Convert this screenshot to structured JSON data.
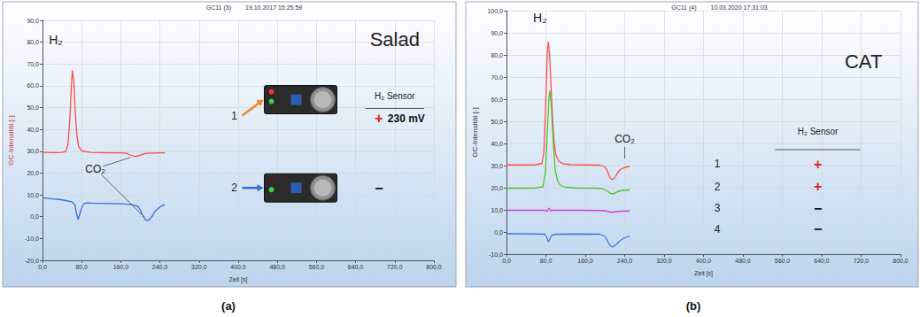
{
  "chart_data": [
    {
      "type": "line",
      "panel": "(a)",
      "header": [
        "GC11 (3)",
        "19.10.2017 15:25:59"
      ],
      "title": "Salad",
      "x_label": "Zeit [s]",
      "y_label": "GC-Intensität [-]",
      "grid": true,
      "xlim": [
        0,
        800
      ],
      "xticks": [
        {
          "value": 0,
          "label": "0,0"
        },
        {
          "value": 80,
          "label": "80,0"
        },
        {
          "value": 160,
          "label": "160,0"
        },
        {
          "value": 240,
          "label": "240,0"
        },
        {
          "value": 320,
          "label": "320,0"
        },
        {
          "value": 400,
          "label": "400,0"
        },
        {
          "value": 480,
          "label": "480,0"
        },
        {
          "value": 560,
          "label": "560,0"
        },
        {
          "value": 640,
          "label": "640,0"
        },
        {
          "value": 720,
          "label": "720,0"
        },
        {
          "value": 800,
          "label": "800,0"
        }
      ],
      "ylim": [
        -20,
        90
      ],
      "yticks": [
        {
          "value": -20,
          "label": "-20,0"
        },
        {
          "value": -10,
          "label": "-10,0"
        },
        {
          "value": 0,
          "label": "0,0"
        },
        {
          "value": 10,
          "label": "10,0"
        },
        {
          "value": 20,
          "label": "20,0"
        },
        {
          "value": 30,
          "label": "30,0"
        },
        {
          "value": 40,
          "label": "40,0"
        },
        {
          "value": 50,
          "label": "50,0"
        },
        {
          "value": 60,
          "label": "60,0"
        },
        {
          "value": 70,
          "label": "70,0"
        },
        {
          "value": 80,
          "label": "80,0"
        },
        {
          "value": 90,
          "label": "90,0"
        }
      ],
      "sensor_header": "H₂ Sensor",
      "series": [
        {
          "name": "1",
          "color": "#ff4848",
          "sensor": "+",
          "sensor_reading": "230 mV",
          "x": [
            0,
            10,
            20,
            30,
            40,
            48,
            52,
            56,
            59,
            61,
            64,
            67,
            70,
            74,
            80,
            90,
            100,
            120,
            140,
            160,
            170,
            175,
            180,
            185,
            190,
            195,
            200,
            210,
            220,
            230,
            240,
            250
          ],
          "values": [
            29.5,
            29.5,
            29.4,
            29.4,
            29.5,
            30,
            33,
            45,
            60,
            67,
            62,
            48,
            38,
            32,
            30.3,
            29.8,
            29.5,
            29.4,
            29.3,
            29.3,
            29.2,
            28.8,
            28.2,
            27.8,
            27.6,
            27.8,
            28.3,
            29,
            29.2,
            29.2,
            29.3,
            29.3
          ]
        },
        {
          "name": "2",
          "color": "#3a6fd8",
          "sensor": "−",
          "x": [
            0,
            10,
            20,
            30,
            40,
            50,
            60,
            66,
            70,
            73,
            76,
            80,
            85,
            90,
            100,
            120,
            140,
            160,
            180,
            195,
            200,
            205,
            210,
            215,
            220,
            225,
            230,
            240,
            250
          ],
          "values": [
            8.7,
            8.5,
            8.2,
            8,
            7.7,
            7.3,
            6.8,
            5.5,
            1,
            -1.3,
            1,
            4,
            6,
            6.3,
            6.2,
            6.1,
            6,
            5.9,
            5.6,
            4.8,
            3,
            0.5,
            -1.2,
            -1.8,
            -1,
            0.5,
            2.5,
            4.5,
            5.5
          ]
        }
      ],
      "annotations": [
        {
          "text": "H₂",
          "x": 27,
          "y": 81
        },
        {
          "text": "CO₂",
          "x": 108,
          "y": 22,
          "targets": [
            [
              185,
              27.5
            ],
            [
              212,
              -1
            ]
          ]
        }
      ]
    },
    {
      "type": "line",
      "panel": "(b)",
      "header": [
        "GC11 (4)",
        "10.03.2020 17:31:03"
      ],
      "title": "CAT",
      "x_label": "Zeit [s]",
      "y_label": "GC-Intensität [-]",
      "grid": true,
      "xlim": [
        0,
        800
      ],
      "xticks": [
        {
          "value": 0,
          "label": "0,0"
        },
        {
          "value": 80,
          "label": "80,0"
        },
        {
          "value": 160,
          "label": "160,0"
        },
        {
          "value": 240,
          "label": "240,0"
        },
        {
          "value": 320,
          "label": "320,0"
        },
        {
          "value": 400,
          "label": "400,0"
        },
        {
          "value": 480,
          "label": "480,0"
        },
        {
          "value": 560,
          "label": "560,0"
        },
        {
          "value": 640,
          "label": "640,0"
        },
        {
          "value": 720,
          "label": "720,0"
        },
        {
          "value": 800,
          "label": "800,0"
        }
      ],
      "ylim": [
        -10,
        100
      ],
      "yticks": [
        {
          "value": -10,
          "label": "-10,0"
        },
        {
          "value": 0,
          "label": "0,0"
        },
        {
          "value": 10,
          "label": "10,0"
        },
        {
          "value": 20,
          "label": "20,0"
        },
        {
          "value": 30,
          "label": "30,0"
        },
        {
          "value": 40,
          "label": "40,0"
        },
        {
          "value": 50,
          "label": "50,0"
        },
        {
          "value": 60,
          "label": "60,0"
        },
        {
          "value": 70,
          "label": "70,0"
        },
        {
          "value": 80,
          "label": "80,0"
        },
        {
          "value": 90,
          "label": "90,0"
        },
        {
          "value": 100,
          "label": "100,0"
        }
      ],
      "sensor_header": "H₂ Sensor",
      "series": [
        {
          "name": "1",
          "color": "#ff4c4c",
          "sensor": "+",
          "x": [
            0,
            20,
            40,
            60,
            72,
            76,
            80,
            83,
            85,
            88,
            92,
            96,
            100,
            106,
            115,
            130,
            160,
            190,
            200,
            205,
            210,
            215,
            220,
            225,
            230,
            240,
            250
          ],
          "values": [
            30.3,
            30.3,
            30.3,
            30.4,
            31,
            36,
            60,
            82,
            86,
            78,
            58,
            42,
            35,
            32,
            30.8,
            30.4,
            30.3,
            30.2,
            29.5,
            27.5,
            24.5,
            23.6,
            24.5,
            26.5,
            28,
            29.2,
            29.6
          ]
        },
        {
          "name": "2",
          "color": "#55c22a",
          "sensor": "+",
          "x": [
            0,
            20,
            40,
            60,
            74,
            79,
            83,
            86,
            88,
            91,
            95,
            99,
            104,
            110,
            120,
            140,
            180,
            195,
            205,
            210,
            215,
            220,
            225,
            235,
            250
          ],
          "values": [
            19.8,
            19.8,
            19.8,
            19.9,
            20.5,
            27,
            45,
            60,
            63.8,
            57,
            40,
            28,
            23,
            21,
            20.2,
            19.9,
            19.8,
            19.6,
            18.5,
            17.5,
            17.2,
            17.5,
            18.2,
            18.8,
            19
          ]
        },
        {
          "name": "3",
          "color": "#d23fd2",
          "sensor": "−",
          "x": [
            0,
            60,
            78,
            82,
            86,
            90,
            95,
            150,
            195,
            205,
            212,
            220,
            235,
            250
          ],
          "values": [
            9.8,
            9.8,
            9.8,
            9.2,
            10.8,
            9.6,
            9.8,
            9.8,
            9.7,
            9.3,
            8.9,
            9.1,
            9.4,
            9.5
          ]
        },
        {
          "name": "4",
          "color": "#3f78e0",
          "sensor": "−",
          "x": [
            0,
            60,
            78,
            82,
            85,
            88,
            92,
            100,
            140,
            190,
            200,
            205,
            210,
            215,
            222,
            230,
            240,
            250
          ],
          "values": [
            -0.8,
            -0.9,
            -1,
            -2.5,
            -4.5,
            -3.2,
            -1.5,
            -1,
            -0.9,
            -1,
            -2,
            -4,
            -6,
            -6.8,
            -5.8,
            -4,
            -2.6,
            -1.8
          ]
        }
      ],
      "annotations": [
        {
          "text": "H₂",
          "x": 68,
          "y": 97
        },
        {
          "text": "CO₂",
          "x": 240,
          "y": 42,
          "targets": [
            [
              240,
              32
            ]
          ]
        }
      ]
    }
  ]
}
